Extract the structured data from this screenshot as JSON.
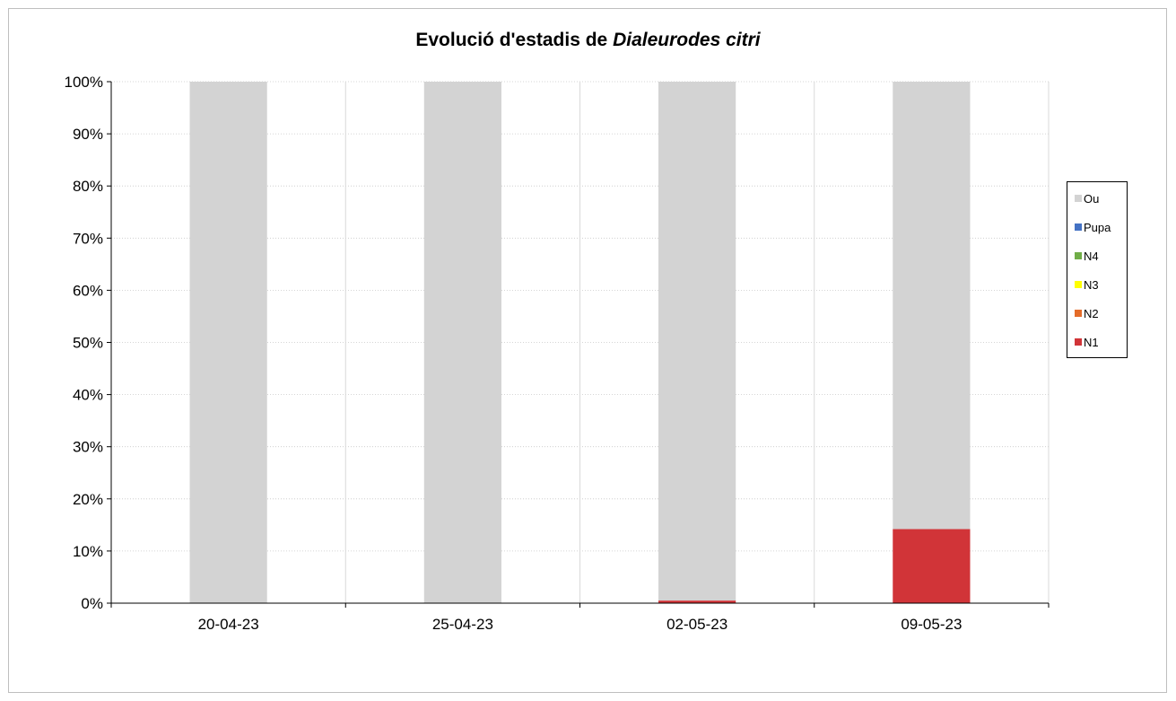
{
  "chart_data": {
    "type": "bar",
    "stacked": true,
    "percent_stacked": true,
    "title_prefix": "Evolució d'estadis de ",
    "title_italic": "Dialeurodes citri",
    "categories": [
      "20-04-23",
      "25-04-23",
      "02-05-23",
      "09-05-23"
    ],
    "series": [
      {
        "name": "N1",
        "color": "#d13438",
        "values": [
          0,
          0,
          0.5,
          14.2
        ]
      },
      {
        "name": "N2",
        "color": "#e46c29",
        "values": [
          0,
          0,
          0,
          0
        ]
      },
      {
        "name": "N3",
        "color": "#ffff00",
        "values": [
          0,
          0,
          0,
          0
        ]
      },
      {
        "name": "N4",
        "color": "#70ad47",
        "values": [
          0,
          0,
          0,
          0
        ]
      },
      {
        "name": "Pupa",
        "color": "#4472c4",
        "values": [
          0,
          0,
          0,
          0
        ]
      },
      {
        "name": "Ou",
        "color": "#d3d3d3",
        "values": [
          100,
          100,
          99.5,
          85.8
        ]
      }
    ],
    "ylim": [
      0,
      100
    ],
    "y_ticks": [
      "0%",
      "10%",
      "20%",
      "30%",
      "40%",
      "50%",
      "60%",
      "70%",
      "80%",
      "90%",
      "100%"
    ],
    "grid": true,
    "legend_position": "right",
    "legend_order": [
      "Ou",
      "Pupa",
      "N4",
      "N3",
      "N2",
      "N1"
    ]
  }
}
